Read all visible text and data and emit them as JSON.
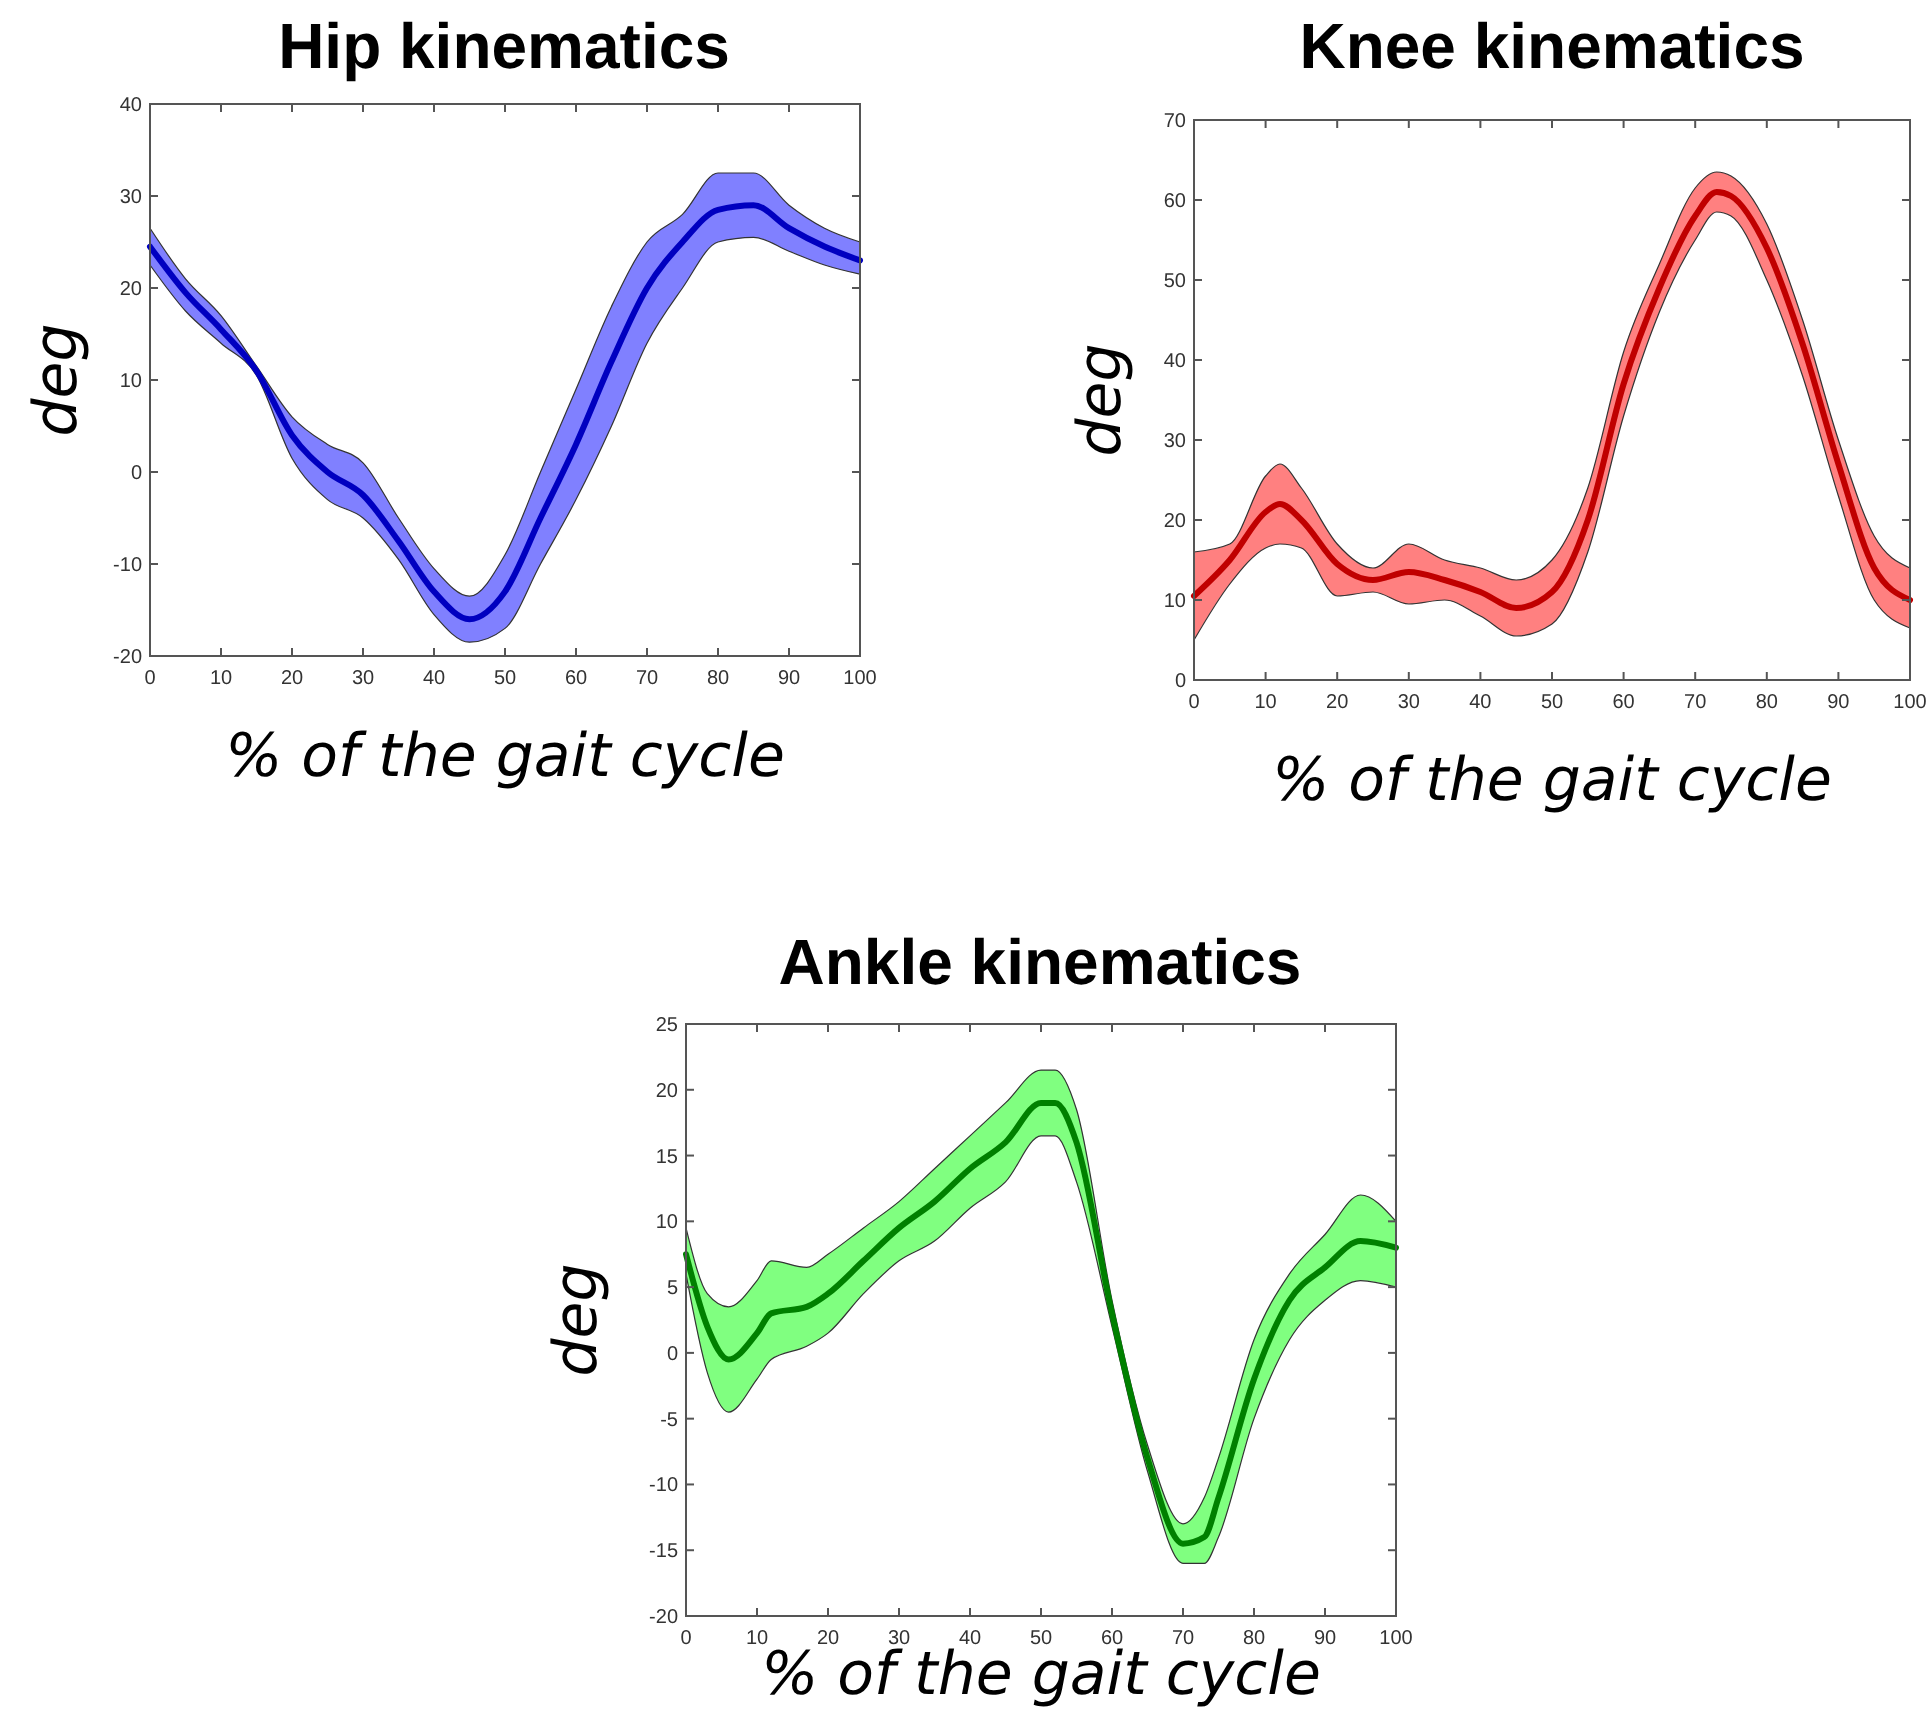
{
  "chart_data": [
    {
      "type": "line",
      "title": "Hip kinematics",
      "xlabel": "% of the gait cycle",
      "ylabel": "deg",
      "xlim": [
        0,
        100
      ],
      "xticks": [
        0,
        10,
        20,
        30,
        40,
        50,
        60,
        70,
        80,
        90,
        100
      ],
      "ylim": [
        -20,
        40
      ],
      "yticks": [
        -20,
        -10,
        0,
        10,
        20,
        30,
        40
      ],
      "x": [
        0,
        5,
        10,
        15,
        20,
        25,
        30,
        35,
        40,
        45,
        50,
        55,
        60,
        65,
        70,
        75,
        80,
        85,
        90,
        95,
        100
      ],
      "series": [
        {
          "color": "#0000c0",
          "values": [
            24.5,
            19.5,
            15.5,
            11,
            4,
            0,
            -2.5,
            -7.5,
            -13,
            -16,
            -13,
            -5,
            3,
            12,
            20,
            25,
            28.5,
            29,
            26.5,
            24.5,
            23
          ],
          "lower": [
            22.5,
            17.5,
            14,
            10.5,
            1.5,
            -3,
            -5,
            -9.5,
            -15.5,
            -18.5,
            -17,
            -10,
            -3,
            5,
            14,
            20,
            25,
            25.5,
            24,
            22.5,
            21.5
          ],
          "upper": [
            26.5,
            21,
            17,
            11.5,
            6,
            3,
            1,
            -5,
            -10.5,
            -13.5,
            -9,
            0,
            9,
            18,
            25,
            28,
            32.5,
            32.5,
            29,
            26.5,
            25
          ]
        }
      ]
    },
    {
      "type": "line",
      "title": "Knee kinematics",
      "xlabel": "% of the gait cycle",
      "ylabel": "deg",
      "xlim": [
        0,
        100
      ],
      "xticks": [
        0,
        10,
        20,
        30,
        40,
        50,
        60,
        70,
        80,
        90,
        100
      ],
      "ylim": [
        0,
        70
      ],
      "yticks": [
        0,
        10,
        20,
        30,
        40,
        50,
        60,
        70
      ],
      "x": [
        0,
        5,
        10,
        12,
        15,
        20,
        25,
        30,
        35,
        40,
        45,
        50,
        55,
        60,
        65,
        70,
        73,
        75,
        80,
        85,
        90,
        95,
        100
      ],
      "series": [
        {
          "color": "#c00000",
          "values": [
            10.5,
            15,
            21,
            22,
            20,
            14.5,
            12.5,
            13.5,
            12.5,
            11,
            9,
            11,
            20,
            37,
            49,
            58,
            61,
            60.5,
            54,
            42,
            27,
            14,
            10
          ],
          "lower": [
            5,
            12,
            16.5,
            17,
            16.5,
            10.5,
            11,
            9.5,
            10,
            8,
            5.5,
            7,
            16,
            33,
            46,
            55,
            58.5,
            58,
            50,
            38,
            23,
            10,
            6.5
          ],
          "upper": [
            16,
            17,
            25.5,
            27,
            24,
            17,
            14,
            17,
            15,
            14,
            12.5,
            15,
            24,
            41,
            52,
            61.5,
            63.5,
            63,
            57,
            45,
            30,
            18,
            14
          ]
        }
      ]
    },
    {
      "type": "line",
      "title": "Ankle kinematics",
      "xlabel": "% of the gait cycle",
      "ylabel": "deg",
      "xlim": [
        0,
        100
      ],
      "xticks": [
        0,
        10,
        20,
        30,
        40,
        50,
        60,
        70,
        80,
        90,
        100
      ],
      "ylim": [
        -20,
        25
      ],
      "yticks": [
        -20,
        -15,
        -10,
        -5,
        0,
        5,
        10,
        15,
        20,
        25
      ],
      "x": [
        0,
        3,
        6,
        10,
        12,
        17,
        20,
        25,
        30,
        35,
        40,
        45,
        50,
        52,
        55,
        60,
        65,
        70,
        73,
        75,
        80,
        85,
        90,
        95,
        100
      ],
      "series": [
        {
          "color": "#008000",
          "values": [
            7.5,
            2,
            -0.5,
            1.5,
            3,
            3.5,
            4.5,
            7,
            9.5,
            11.5,
            14,
            16,
            19,
            19,
            16,
            3,
            -8,
            -14.5,
            -14,
            -11,
            -2,
            4,
            6.5,
            8.5,
            8
          ],
          "lower": [
            6,
            -1.5,
            -4.5,
            -2,
            -0.5,
            0.5,
            1.5,
            4.5,
            7,
            8.5,
            11,
            13,
            16.5,
            16.5,
            13,
            2,
            -9,
            -16,
            -16,
            -14,
            -5,
            1,
            4,
            5.5,
            5
          ],
          "upper": [
            9.5,
            4.5,
            3.5,
            5.5,
            7,
            6.5,
            7.5,
            9.5,
            11.5,
            14,
            16.5,
            19,
            21.5,
            21.5,
            18.5,
            4,
            -7,
            -13,
            -11,
            -8,
            1,
            6,
            9,
            12,
            10
          ]
        }
      ]
    }
  ]
}
